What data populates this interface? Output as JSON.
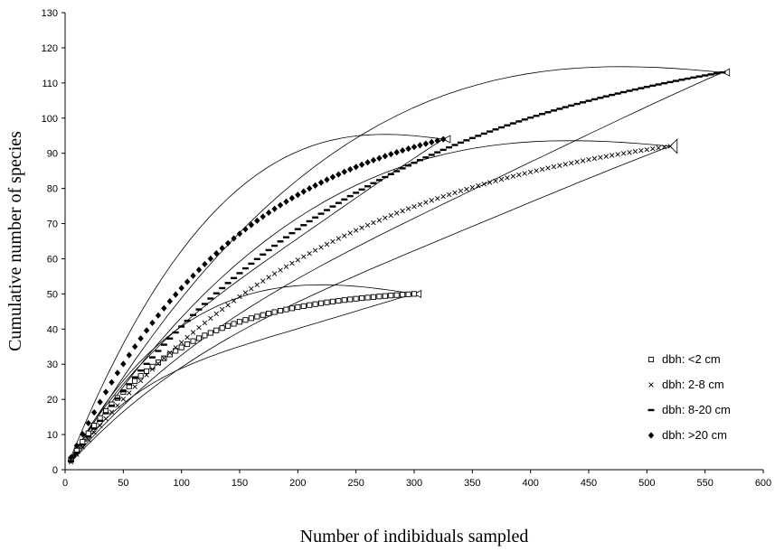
{
  "chart_data": {
    "type": "scatter",
    "xlabel": "Number of indibiduals sampled",
    "ylabel": "Cumulative number of species",
    "xlim": [
      0,
      600
    ],
    "ylim": [
      0,
      130
    ],
    "xticks": [
      0,
      50,
      100,
      150,
      200,
      250,
      300,
      350,
      400,
      450,
      500,
      550,
      600
    ],
    "yticks": [
      0,
      10,
      20,
      30,
      40,
      50,
      60,
      70,
      80,
      90,
      100,
      110,
      120,
      130
    ],
    "grid": false,
    "legend_position": "bottom-right",
    "series": [
      {
        "name": "dbh: <2 cm",
        "marker": "square",
        "x_max": 300,
        "y_end": 50,
        "curve_k": 90,
        "band_low_end": 49,
        "band_high_end": 51
      },
      {
        "name": "dbh: 2-8 cm",
        "marker": "x",
        "x_max": 520,
        "y_end": 92,
        "curve_k": 230,
        "band_low_end": 90,
        "band_high_end": 94
      },
      {
        "name": "dbh: 8-20 cm",
        "marker": "dash",
        "x_max": 565,
        "y_end": 113,
        "curve_k": 260,
        "band_low_end": 112,
        "band_high_end": 114
      },
      {
        "name": "dbh: >20 cm",
        "marker": "diamond",
        "x_max": 325,
        "y_end": 94,
        "curve_k": 150,
        "band_low_end": 93,
        "band_high_end": 95
      }
    ]
  }
}
